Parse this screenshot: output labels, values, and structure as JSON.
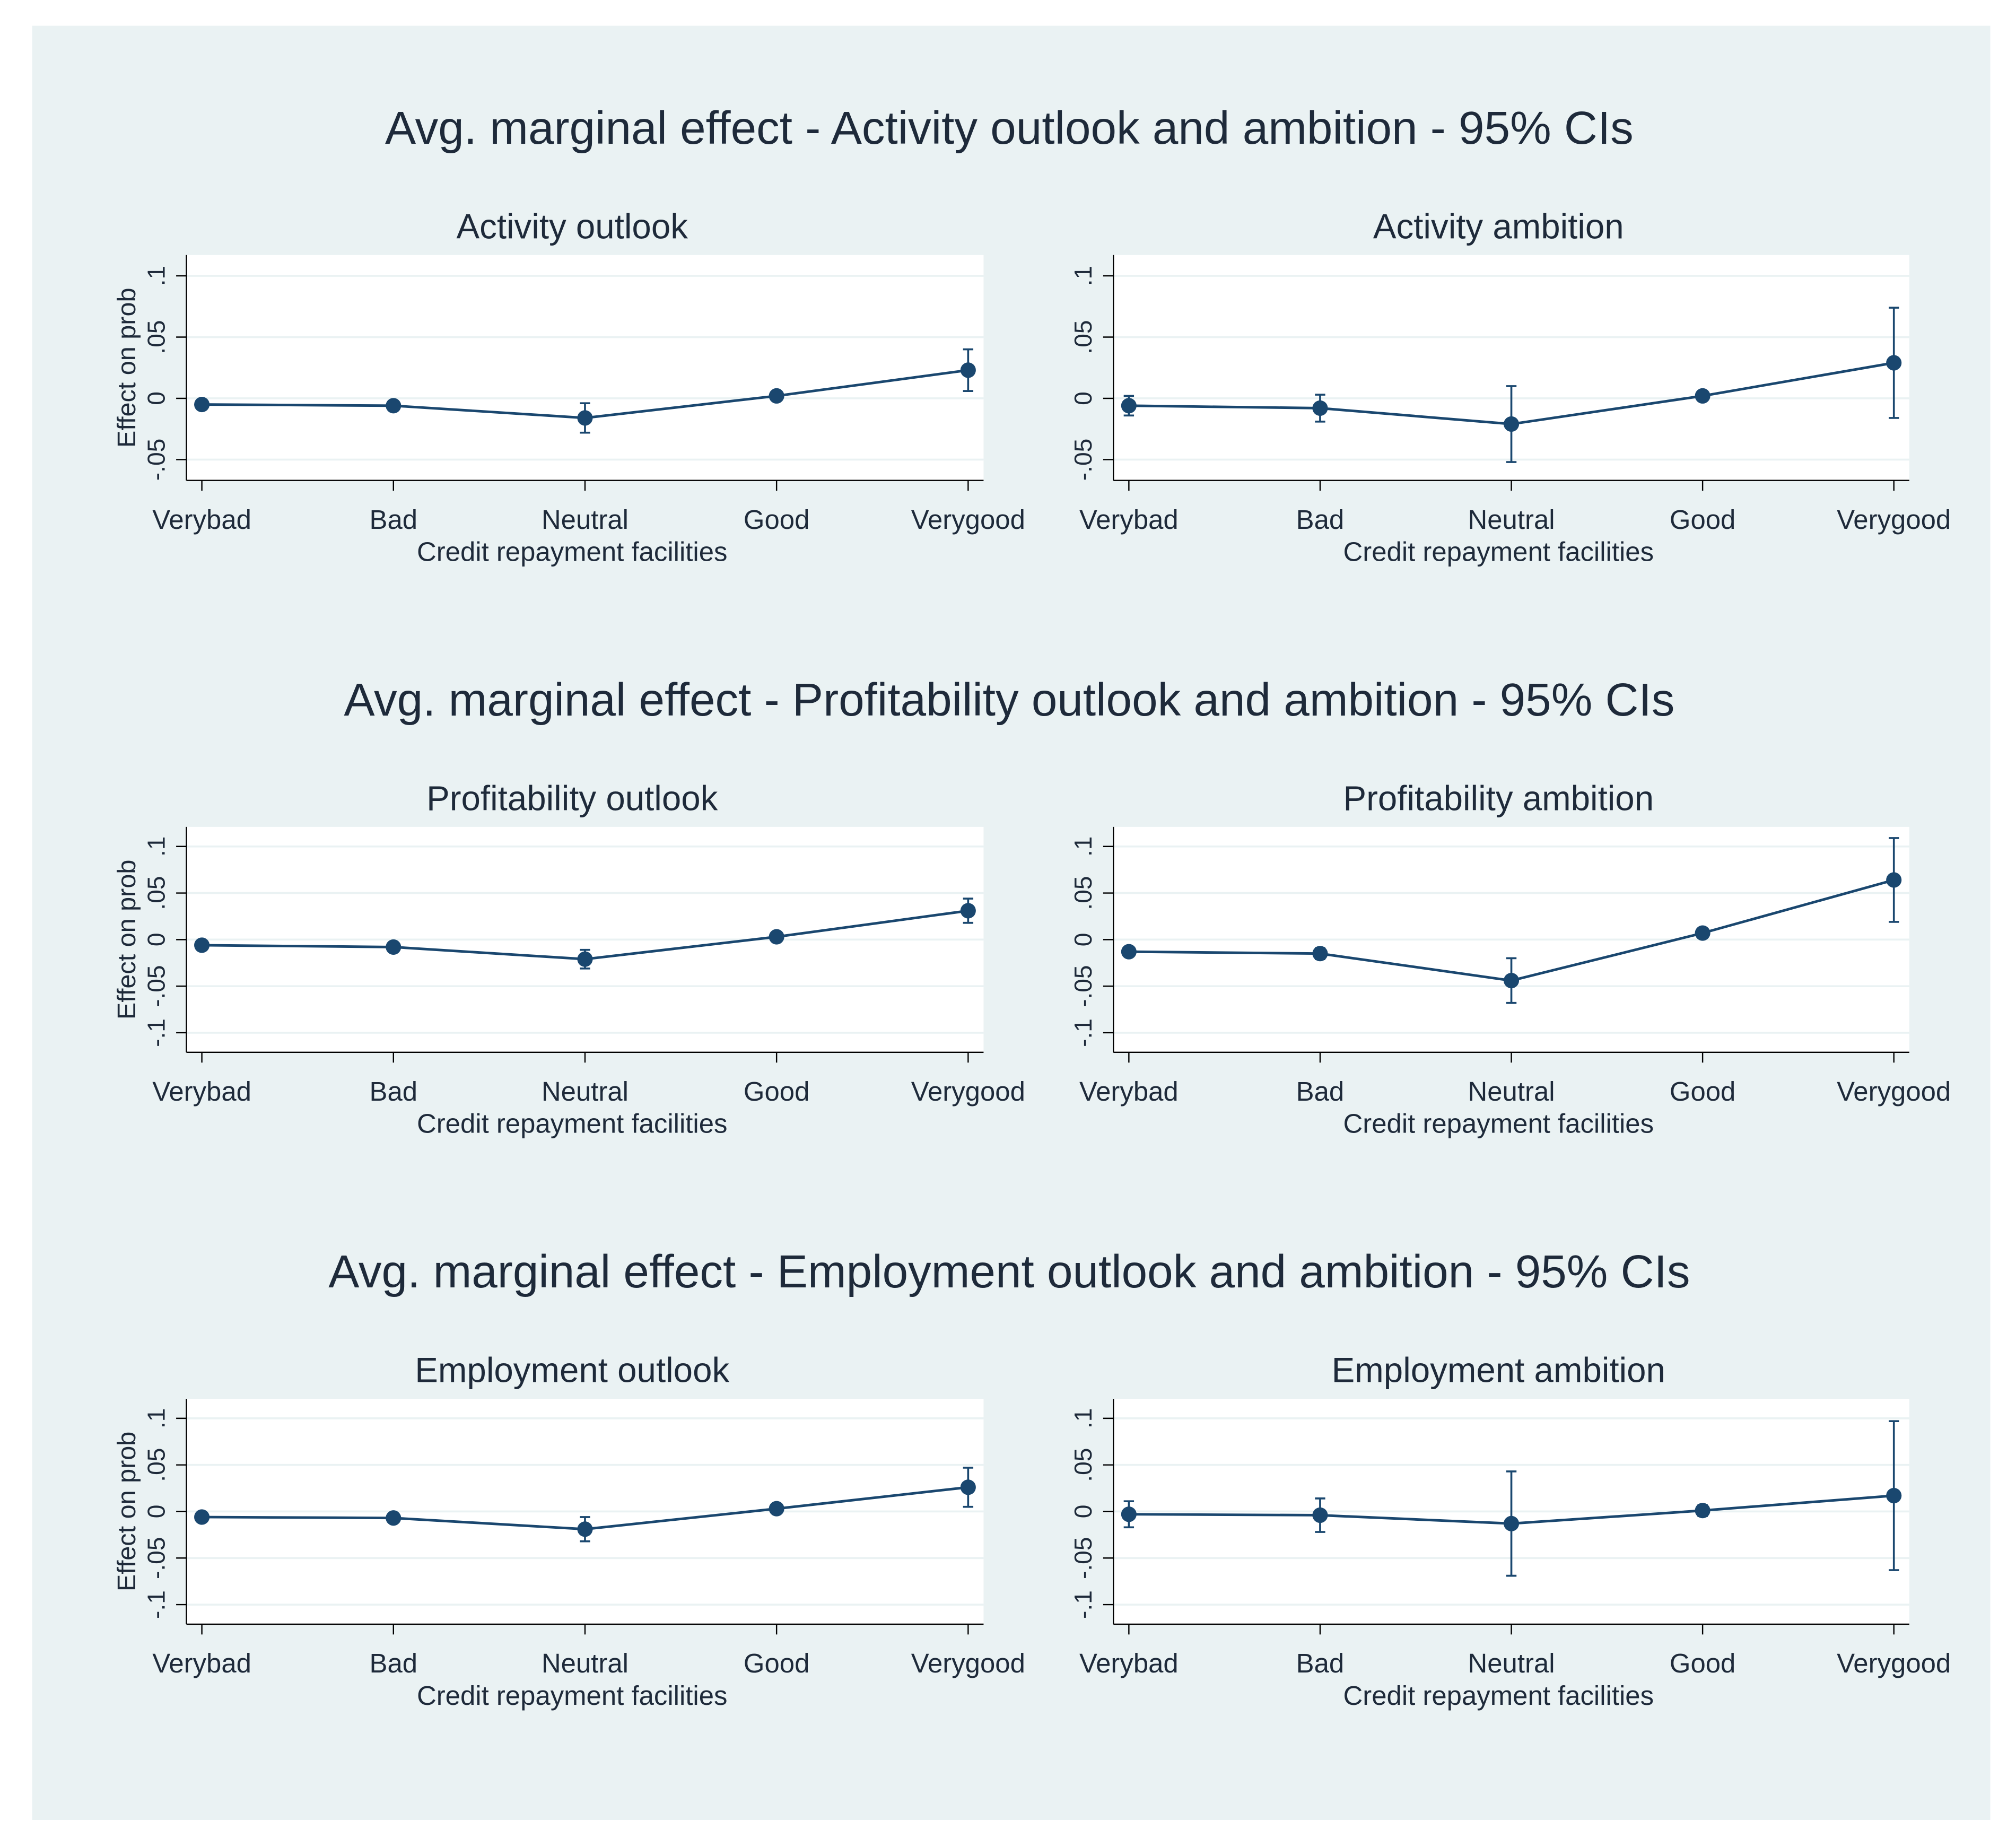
{
  "titles": [
    "Avg. marginal effect - Activity outlook and ambition - 95% CIs",
    "Avg. marginal effect - Profitability outlook and ambition - 95% CIs",
    "Avg. marginal effect - Employment outlook and ambition - 95% CIs"
  ],
  "chart_data": [
    {
      "type": "line",
      "title": "Activity outlook",
      "xlabel": "Credit repayment facilities",
      "ylabel": "Effect on prob",
      "categories": [
        "Verybad",
        "Bad",
        "Neutral",
        "Good",
        "Verygood"
      ],
      "values": [
        -0.005,
        -0.006,
        -0.016,
        0.002,
        0.023
      ],
      "errors": [
        0.004,
        0.003,
        0.012,
        0.003,
        0.017
      ],
      "color": "#1a476f",
      "ylim": [
        -0.067,
        0.117
      ],
      "yticks": [
        {
          "value": -0.05,
          "label": "-.05"
        },
        0,
        {
          "value": 0.05,
          "label": ".05"
        },
        {
          "value": 0.1,
          "label": ".1"
        }
      ],
      "grid": true
    },
    {
      "type": "line",
      "title": "Activity ambition",
      "xlabel": "Credit repayment facilities",
      "categories": [
        "Verybad",
        "Bad",
        "Neutral",
        "Good",
        "Verygood"
      ],
      "values": [
        -0.006,
        -0.008,
        -0.021,
        0.002,
        0.029
      ],
      "errors": [
        0.008,
        0.011,
        0.031,
        0.004,
        0.045
      ],
      "color": "#1a476f",
      "ylim": [
        -0.067,
        0.117
      ],
      "yticks": [
        {
          "value": -0.05,
          "label": "-.05"
        },
        0,
        {
          "value": 0.05,
          "label": ".05"
        },
        {
          "value": 0.1,
          "label": ".1"
        }
      ],
      "grid": true
    },
    {
      "type": "line",
      "title": "Profitability outlook",
      "xlabel": "Credit repayment facilities",
      "ylabel": "Effect on prob",
      "categories": [
        "Verybad",
        "Bad",
        "Neutral",
        "Good",
        "Verygood"
      ],
      "values": [
        -0.006,
        -0.008,
        -0.021,
        0.003,
        0.031
      ],
      "errors": [
        0.004,
        0.004,
        0.01,
        0.004,
        0.013
      ],
      "color": "#1a476f",
      "ylim": [
        -0.121,
        0.121
      ],
      "yticks": [
        {
          "value": -0.1,
          "label": "-.1"
        },
        {
          "value": -0.05,
          "label": "-.05"
        },
        0,
        {
          "value": 0.05,
          "label": ".05"
        },
        {
          "value": 0.1,
          "label": ".1"
        }
      ],
      "grid": true
    },
    {
      "type": "line",
      "title": "Profitability ambition",
      "xlabel": "Credit repayment facilities",
      "categories": [
        "Verybad",
        "Bad",
        "Neutral",
        "Good",
        "Verygood"
      ],
      "values": [
        -0.013,
        -0.015,
        -0.044,
        0.007,
        0.064
      ],
      "errors": [
        0.005,
        0.006,
        0.024,
        0.005,
        0.045
      ],
      "color": "#1a476f",
      "ylim": [
        -0.121,
        0.121
      ],
      "yticks": [
        {
          "value": -0.1,
          "label": "-.1"
        },
        {
          "value": -0.05,
          "label": "-.05"
        },
        0,
        {
          "value": 0.05,
          "label": ".05"
        },
        {
          "value": 0.1,
          "label": ".1"
        }
      ],
      "grid": true
    },
    {
      "type": "line",
      "title": "Employment outlook",
      "xlabel": "Credit repayment facilities",
      "ylabel": "Effect on prob",
      "categories": [
        "Verybad",
        "Bad",
        "Neutral",
        "Good",
        "Verygood"
      ],
      "values": [
        -0.006,
        -0.007,
        -0.019,
        0.003,
        0.026
      ],
      "errors": [
        0.005,
        0.004,
        0.013,
        0.004,
        0.021
      ],
      "color": "#1a476f",
      "ylim": [
        -0.121,
        0.121
      ],
      "yticks": [
        {
          "value": -0.1,
          "label": "-.1"
        },
        {
          "value": -0.05,
          "label": "-.05"
        },
        0,
        {
          "value": 0.05,
          "label": ".05"
        },
        {
          "value": 0.1,
          "label": ".1"
        }
      ],
      "grid": true
    },
    {
      "type": "line",
      "title": "Employment ambition",
      "xlabel": "Credit repayment facilities",
      "categories": [
        "Verybad",
        "Bad",
        "Neutral",
        "Good",
        "Verygood"
      ],
      "values": [
        -0.003,
        -0.004,
        -0.013,
        0.001,
        0.017
      ],
      "errors": [
        0.014,
        0.018,
        0.056,
        0.006,
        0.08
      ],
      "color": "#1a476f",
      "ylim": [
        -0.121,
        0.121
      ],
      "yticks": [
        {
          "value": -0.1,
          "label": "-.1"
        },
        {
          "value": -0.05,
          "label": "-.05"
        },
        0,
        {
          "value": 0.05,
          "label": ".05"
        },
        {
          "value": 0.1,
          "label": ".1"
        }
      ],
      "grid": true
    }
  ]
}
